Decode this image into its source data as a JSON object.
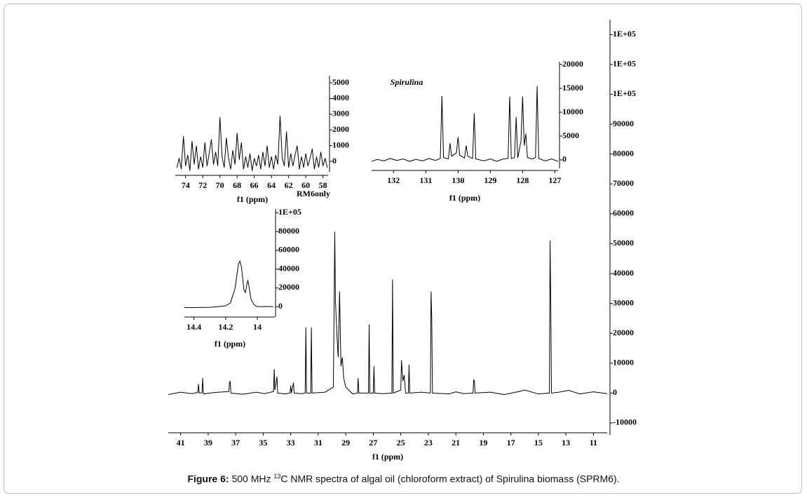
{
  "figure": {
    "caption": {
      "label": "Figure 6:",
      "pre": " 500 MHz ",
      "sup": "13",
      "text": "C NMR spectra of algal oil (chloroform extract) of Spirulina biomass (SPRM6)."
    }
  },
  "chart_data": [
    {
      "type": "line",
      "xlabel": "f1 (ppm)",
      "color": "#000000",
      "xlim": [
        41.9,
        10.0
      ],
      "ylim": [
        -14000,
        125000
      ],
      "xticks": [
        41,
        39,
        37,
        35,
        33,
        31,
        29,
        27,
        25,
        23,
        21,
        19,
        17,
        15,
        13,
        11
      ],
      "yticks": [
        -10000,
        0,
        10000,
        20000,
        30000,
        40000,
        50000,
        60000,
        70000,
        80000,
        90000,
        {
          "value": 100000,
          "label": "1E+05"
        },
        {
          "value": 110000,
          "label": "1E+05"
        },
        {
          "value": 120000,
          "label": "1E+05"
        }
      ],
      "x": [
        41.9,
        41,
        40.2,
        39.75,
        39.7,
        39.65,
        39.45,
        39.4,
        39.35,
        38.5,
        37.5,
        37.45,
        37.4,
        37.35,
        36.5,
        35.5,
        34.9,
        34.25,
        34.2,
        34.15,
        34.05,
        34.0,
        33.95,
        33.4,
        33.05,
        33.0,
        32.95,
        32.8,
        32.75,
        32.2,
        31.95,
        31.9,
        31.85,
        31.55,
        31.5,
        31.45,
        30.5,
        29.9,
        29.8,
        29.75,
        29.65,
        29.55,
        29.45,
        29.35,
        29.25,
        29.15,
        29.0,
        28.5,
        28.15,
        28.1,
        28.05,
        27.35,
        27.3,
        27.25,
        27.0,
        26.95,
        26.9,
        26.3,
        25.65,
        25.6,
        25.55,
        25.0,
        24.95,
        24.85,
        24.75,
        24.65,
        24.45,
        24.4,
        24.35,
        23.5,
        22.85,
        22.8,
        22.75,
        22.7,
        21.5,
        21.0,
        20.4,
        19.75,
        19.7,
        19.65,
        19.6,
        18.5,
        17.5,
        16.5,
        16.0,
        15.0,
        14.2,
        14.15,
        14.1,
        14.05,
        13.5,
        12.8,
        12.0,
        11.0,
        10.0
      ],
      "values": [
        -500,
        300,
        -200,
        200,
        3000,
        0,
        100,
        5000,
        -300,
        200,
        500,
        3500,
        4000,
        0,
        -400,
        300,
        -200,
        500,
        8000,
        1000,
        4000,
        5500,
        0,
        -300,
        0,
        2500,
        0,
        3500,
        0,
        -200,
        0,
        22000,
        0,
        0,
        22000,
        0,
        300,
        2000,
        54000,
        31000,
        20000,
        12000,
        34000,
        9000,
        12000,
        5000,
        2000,
        -300,
        0,
        5000,
        0,
        0,
        23000,
        0,
        0,
        9000,
        0,
        -200,
        0,
        38000,
        0,
        1000,
        11000,
        4000,
        6000,
        0,
        0,
        9500,
        0,
        300,
        0,
        34000,
        25000,
        0,
        -300,
        400,
        -200,
        0,
        4500,
        4000,
        0,
        300,
        -500,
        400,
        1000,
        -300,
        0,
        51000,
        30000,
        0,
        300,
        900,
        -300,
        400,
        -200
      ]
    },
    {
      "type": "line",
      "xlabel": "f1 (ppm)",
      "color": "#000000",
      "xlim": [
        75.2,
        57.4
      ],
      "ylim": [
        -670,
        5450
      ],
      "xticks": [
        74,
        72,
        70,
        68,
        66,
        64,
        62,
        60,
        58
      ],
      "yticks": [
        0,
        1000,
        2000,
        3000,
        4000,
        5000
      ],
      "annotations": [
        "RM6",
        "only"
      ],
      "x": [
        75,
        74.75,
        74.5,
        74.25,
        74,
        73.75,
        73.5,
        73.25,
        73,
        72.75,
        72.5,
        72.25,
        72,
        71.75,
        71.5,
        71.25,
        71,
        70.75,
        70.5,
        70.25,
        70,
        69.75,
        69.5,
        69.25,
        69,
        68.75,
        68.5,
        68.25,
        68,
        67.75,
        67.5,
        67.25,
        67,
        66.75,
        66.5,
        66.25,
        66,
        65.75,
        65.5,
        65.25,
        65,
        64.75,
        64.5,
        64.25,
        64,
        63.75,
        63.5,
        63.25,
        63,
        62.75,
        62.5,
        62.25,
        62,
        61.75,
        61.5,
        61.25,
        61,
        60.75,
        60.5,
        60.25,
        60,
        59.75,
        59.5,
        59.25,
        59,
        58.75,
        58.5,
        58.25,
        58,
        57.75,
        57.5
      ],
      "values": [
        -400,
        200,
        -500,
        1600,
        -300,
        400,
        -600,
        1300,
        -200,
        1000,
        -500,
        300,
        -400,
        1200,
        -300,
        500,
        1400,
        -200,
        600,
        -300,
        2800,
        300,
        -400,
        1500,
        200,
        -500,
        700,
        -200,
        1800,
        100,
        1200,
        -500,
        300,
        -400,
        500,
        -600,
        200,
        -300,
        400,
        -500,
        600,
        -300,
        1000,
        -400,
        300,
        -500,
        400,
        -200,
        2900,
        200,
        -300,
        1900,
        -400,
        500,
        -300,
        400,
        1000,
        -500,
        300,
        -400,
        500,
        -300,
        200,
        800,
        -500,
        300,
        -400,
        600,
        -300,
        200,
        -400
      ]
    },
    {
      "type": "line",
      "xlabel": "f1 (ppm)",
      "color": "#000000",
      "xlim": [
        132.68,
        126.9
      ],
      "ylim": [
        -1765,
        20590
      ],
      "xticks": [
        132,
        131,
        130,
        129,
        128,
        127
      ],
      "yticks": [
        0,
        5000,
        10000,
        15000,
        20000
      ],
      "annotations": [
        "Spirulina"
      ],
      "x": [
        132.68,
        132.5,
        132.3,
        132.1,
        131.9,
        131.7,
        131.5,
        131.3,
        131.1,
        130.9,
        130.7,
        130.55,
        130.5,
        130.45,
        130.3,
        130.25,
        130.2,
        130.05,
        130.0,
        129.95,
        129.8,
        129.75,
        129.7,
        129.55,
        129.5,
        129.45,
        129.2,
        129.0,
        128.8,
        128.6,
        128.45,
        128.4,
        128.35,
        128.25,
        128.2,
        128.15,
        128.05,
        128.0,
        127.95,
        127.9,
        127.85,
        127.7,
        127.6,
        127.55,
        127.5,
        127.3,
        127.1,
        126.9
      ],
      "values": [
        -300,
        100,
        -200,
        300,
        -100,
        200,
        -300,
        100,
        -200,
        300,
        -100,
        300,
        13400,
        500,
        200,
        3500,
        800,
        1500,
        4800,
        1000,
        400,
        3000,
        800,
        300,
        9800,
        200,
        -200,
        200,
        -300,
        200,
        300,
        13300,
        300,
        500,
        9000,
        400,
        4000,
        13300,
        3000,
        5500,
        500,
        200,
        500,
        15500,
        300,
        -200,
        200,
        -300
      ]
    },
    {
      "type": "line",
      "xlabel": "f1 (ppm)",
      "color": "#000000",
      "xlim": [
        14.46,
        13.89
      ],
      "ylim": [
        -11000,
        104000
      ],
      "xticks": [
        14.4,
        14.2,
        14.0
      ],
      "yticks": [
        0,
        20000,
        40000,
        60000,
        80000,
        {
          "value": 100000,
          "label": "1E+05"
        }
      ],
      "x": [
        14.46,
        14.4,
        14.3,
        14.25,
        14.2,
        14.17,
        14.14,
        14.12,
        14.11,
        14.1,
        14.085,
        14.075,
        14.065,
        14.06,
        14.055,
        14.04,
        14.02,
        14.0,
        13.95,
        13.9
      ],
      "values": [
        -800,
        -900,
        -600,
        0,
        1000,
        4000,
        20000,
        45000,
        48600,
        42000,
        18000,
        15000,
        25000,
        27700,
        24000,
        8000,
        2000,
        0,
        200,
        0
      ]
    }
  ]
}
